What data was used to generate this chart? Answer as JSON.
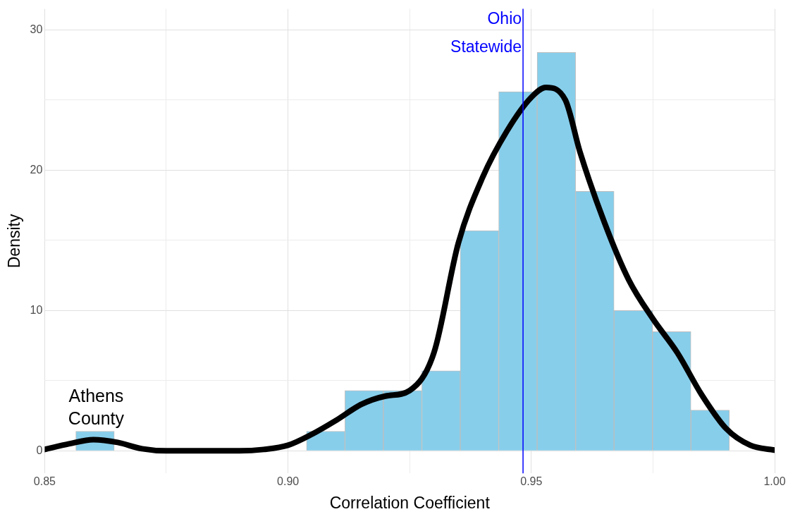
{
  "chart_data": {
    "type": "histogram",
    "xlabel": "Correlation Coefficient",
    "ylabel": "Density",
    "color": "#87ceeb",
    "bins": [
      0.8564,
      0.8643,
      0.8722,
      0.8801,
      0.888,
      0.8959,
      0.9038,
      0.9117,
      0.9196,
      0.9275,
      0.9354,
      0.9433,
      0.9512,
      0.9591,
      0.967,
      0.9749,
      0.9828,
      0.9907
    ],
    "values": [
      1.4,
      0,
      0,
      0,
      0,
      0,
      1.4,
      4.3,
      4.3,
      5.7,
      15.7,
      25.6,
      28.4,
      18.5,
      10,
      8.5,
      2.9
    ],
    "series": [
      {
        "type": "line",
        "color": "#000000",
        "x": [
          0.85,
          0.855,
          0.86,
          0.865,
          0.87,
          0.875,
          0.89,
          0.895,
          0.9,
          0.905,
          0.91,
          0.915,
          0.92,
          0.925,
          0.93,
          0.935,
          0.94,
          0.945,
          0.95,
          0.953,
          0.957,
          0.96,
          0.965,
          0.97,
          0.975,
          0.98,
          0.985,
          0.99,
          0.995,
          1.0
        ],
        "values": [
          0.1,
          0.5,
          0.8,
          0.6,
          0.15,
          0,
          0,
          0.1,
          0.4,
          1.2,
          2.2,
          3.3,
          3.9,
          4.3,
          7,
          14.8,
          19.5,
          22.8,
          25.2,
          25.9,
          25,
          21.3,
          16.3,
          12.2,
          9.4,
          7,
          4,
          1.6,
          0.4,
          0.05
        ]
      }
    ],
    "xlim": [
      0.85,
      1.0
    ],
    "ylim": [
      -1.6,
      31.5
    ],
    "xticks": [
      0.85,
      {
        "value": 0.875,
        "label": null
      },
      "0.90",
      {
        "value": 0.925,
        "label": null
      },
      0.95,
      {
        "value": 0.975,
        "label": null
      },
      "1.00"
    ],
    "yticks": [
      0,
      {
        "value": 5,
        "label": null
      },
      10,
      {
        "value": 15,
        "label": null
      },
      20,
      {
        "value": 25,
        "label": null
      },
      30
    ],
    "grid": true,
    "legend": false,
    "marker": "none",
    "ref_lines": [
      {
        "axis": "x",
        "value": 0.9483,
        "label": "Ohio Statewide",
        "color": "#0000ff"
      }
    ],
    "annotations": [
      {
        "text": "Athens County",
        "x": 0.86,
        "y": 1.4
      }
    ]
  }
}
